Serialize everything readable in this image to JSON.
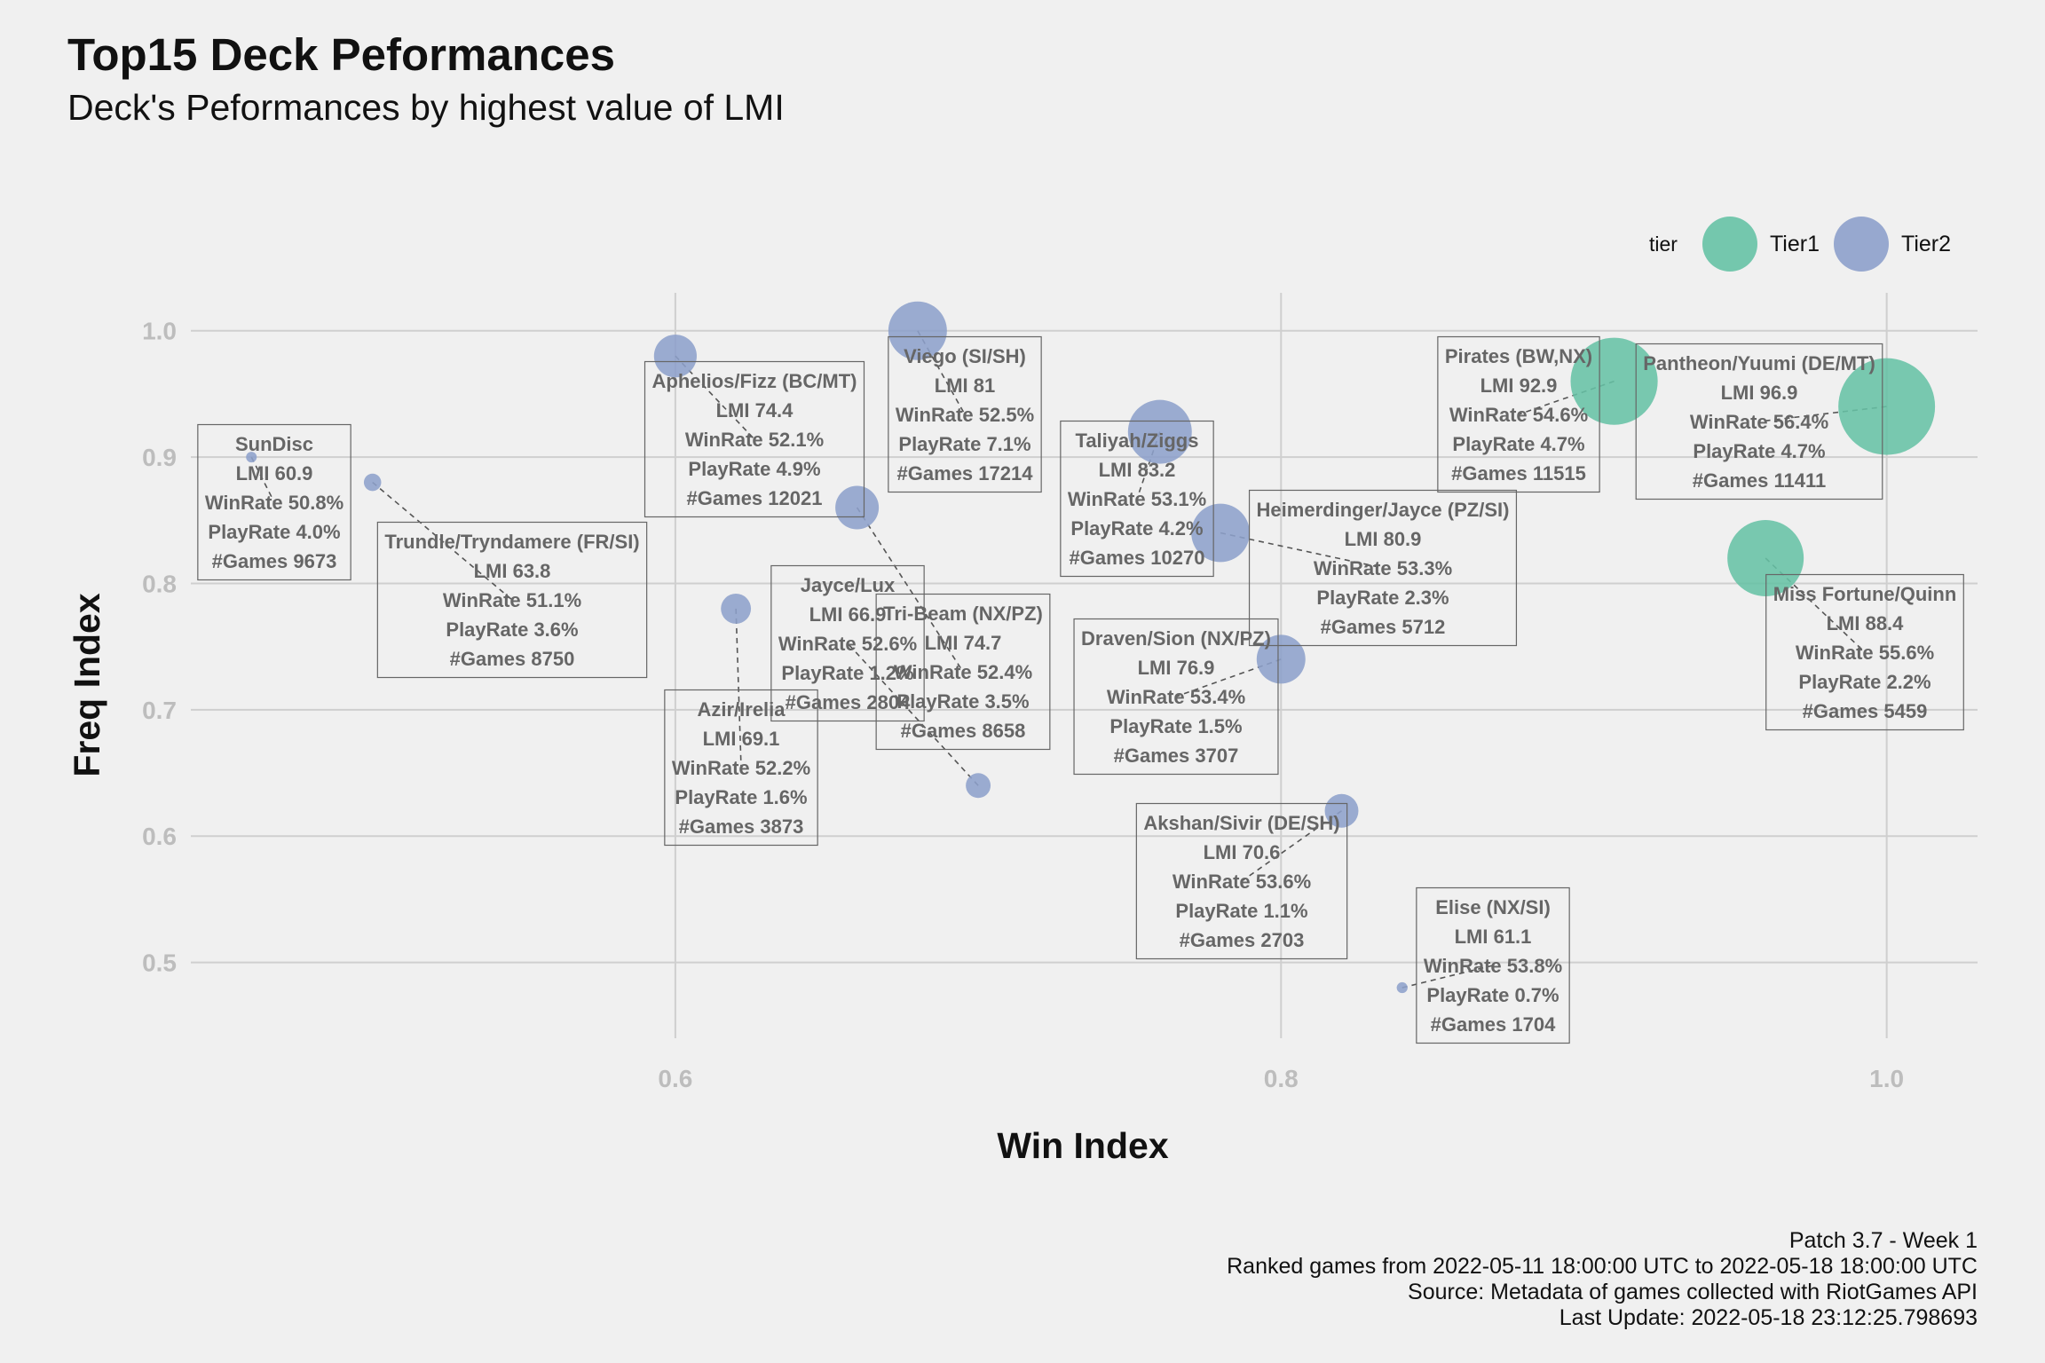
{
  "title": "Top15 Deck Peformances",
  "subtitle": "Deck's Peformances by highest value of LMI",
  "caption": [
    "Patch 3.7 - Week 1",
    "Ranked games from 2022-05-11 18:00:00 UTC to 2022-05-18 18:00:00 UTC",
    "Source: Metadata of games collected with RiotGames API",
    "Last Update: 2022-05-18 23:12:25.798693"
  ],
  "legend": {
    "title": "tier",
    "items": [
      {
        "label": "Tier1",
        "color": "#66c2a5"
      },
      {
        "label": "Tier2",
        "color": "#8da0cb"
      }
    ]
  },
  "chart_data": {
    "type": "scatter",
    "xlabel": "Win Index",
    "ylabel": "Freq Index",
    "xlim": [
      0.44,
      1.03
    ],
    "ylim": [
      0.44,
      1.03
    ],
    "xticks": [
      0.6,
      0.8,
      1.0
    ],
    "xtick_labels": [
      "0.6",
      "0.8",
      "1.0"
    ],
    "yticks": [
      0.5,
      0.6,
      0.7,
      0.8,
      0.9,
      1.0
    ],
    "ytick_labels": [
      "0.5",
      "0.6",
      "0.7",
      "0.8",
      "0.9",
      "1.0"
    ],
    "grid": true,
    "legend_position": "top-right",
    "point_size_variable": "LMI",
    "points": [
      {
        "name": "Pantheon/Yuumi (DE/MT)",
        "x": 1.0,
        "y": 0.94,
        "tier": "Tier1",
        "lmi": 96.9,
        "lines": [
          "Pantheon/Yuumi (DE/MT)",
          "LMI 96.9",
          "WinRate 56.4%",
          "PlayRate 4.7%",
          "#Games 11411"
        ]
      },
      {
        "name": "Pirates (BW,NX)",
        "x": 0.91,
        "y": 0.96,
        "tier": "Tier1",
        "lmi": 92.9,
        "lines": [
          "Pirates (BW,NX)",
          "LMI 92.9",
          "WinRate 54.6%",
          "PlayRate 4.7%",
          "#Games 11515"
        ]
      },
      {
        "name": "Miss Fortune/Quinn",
        "x": 0.96,
        "y": 0.82,
        "tier": "Tier1",
        "lmi": 88.4,
        "lines": [
          "Miss Fortune/Quinn",
          "LMI 88.4",
          "WinRate 55.6%",
          "PlayRate 2.2%",
          "#Games 5459"
        ]
      },
      {
        "name": "Taliyah/Ziggs",
        "x": 0.76,
        "y": 0.92,
        "tier": "Tier2",
        "lmi": 83.2,
        "lines": [
          "Taliyah/Ziggs",
          "LMI 83.2",
          "WinRate 53.1%",
          "PlayRate 4.2%",
          "#Games 10270"
        ]
      },
      {
        "name": "Viego (SI/SH)",
        "x": 0.68,
        "y": 1.0,
        "tier": "Tier2",
        "lmi": 81,
        "lines": [
          "Viego (SI/SH)",
          "LMI 81",
          "WinRate 52.5%",
          "PlayRate 7.1%",
          "#Games 17214"
        ]
      },
      {
        "name": "Heimerdinger/Jayce (PZ/SI)",
        "x": 0.78,
        "y": 0.84,
        "tier": "Tier2",
        "lmi": 80.9,
        "lines": [
          "Heimerdinger/Jayce (PZ/SI)",
          "LMI 80.9",
          "WinRate 53.3%",
          "PlayRate 2.3%",
          "#Games 5712"
        ]
      },
      {
        "name": "Draven/Sion (NX/PZ)",
        "x": 0.8,
        "y": 0.74,
        "tier": "Tier2",
        "lmi": 76.9,
        "lines": [
          "Draven/Sion (NX/PZ)",
          "LMI 76.9",
          "WinRate 53.4%",
          "PlayRate 1.5%",
          "#Games 3707"
        ]
      },
      {
        "name": "Tri-Beam (NX/PZ)",
        "x": 0.66,
        "y": 0.86,
        "tier": "Tier2",
        "lmi": 74.7,
        "lines": [
          "Tri-Beam (NX/PZ)",
          "LMI 74.7",
          "WinRate 52.4%",
          "PlayRate 3.5%",
          "#Games 8658"
        ]
      },
      {
        "name": "Aphelios/Fizz (BC/MT)",
        "x": 0.6,
        "y": 0.98,
        "tier": "Tier2",
        "lmi": 74.4,
        "lines": [
          "Aphelios/Fizz (BC/MT)",
          "LMI 74.4",
          "WinRate 52.1%",
          "PlayRate 4.9%",
          "#Games 12021"
        ]
      },
      {
        "name": "Akshan/Sivir (DE/SH)",
        "x": 0.82,
        "y": 0.62,
        "tier": "Tier2",
        "lmi": 70.6,
        "lines": [
          "Akshan/Sivir (DE/SH)",
          "LMI 70.6",
          "WinRate 53.6%",
          "PlayRate 1.1%",
          "#Games 2703"
        ]
      },
      {
        "name": "Azir/Irelia",
        "x": 0.62,
        "y": 0.78,
        "tier": "Tier2",
        "lmi": 69.1,
        "lines": [
          "Azir/Irelia",
          "LMI 69.1",
          "WinRate 52.2%",
          "PlayRate 1.6%",
          "#Games 3873"
        ]
      },
      {
        "name": "Jayce/Lux",
        "x": 0.7,
        "y": 0.64,
        "tier": "Tier2",
        "lmi": 66.9,
        "lines": [
          "Jayce/Lux",
          "LMI 66.9",
          "WinRate 52.6%",
          "PlayRate 1.2%",
          "#Games 2804"
        ]
      },
      {
        "name": "Trundle/Tryndamere (FR/SI)",
        "x": 0.5,
        "y": 0.88,
        "tier": "Tier2",
        "lmi": 63.8,
        "lines": [
          "Trundle/Tryndamere (FR/SI)",
          "LMI 63.8",
          "WinRate 51.1%",
          "PlayRate 3.6%",
          "#Games 8750"
        ]
      },
      {
        "name": "Elise (NX/SI)",
        "x": 0.84,
        "y": 0.48,
        "tier": "Tier2",
        "lmi": 61.1,
        "lines": [
          "Elise (NX/SI)",
          "LMI 61.1",
          "WinRate 53.8%",
          "PlayRate 0.7%",
          "#Games 1704"
        ]
      },
      {
        "name": "SunDisc",
        "x": 0.46,
        "y": 0.9,
        "tier": "Tier2",
        "lmi": 60.9,
        "lines": [
          "SunDisc",
          "LMI 60.9",
          "WinRate 50.8%",
          "PlayRate 4.0%",
          "#Games 9673"
        ]
      }
    ]
  }
}
